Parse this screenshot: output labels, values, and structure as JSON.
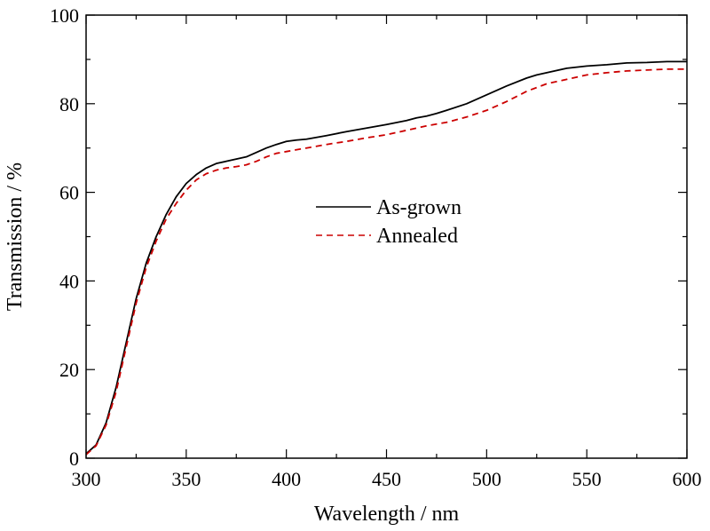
{
  "chart_data": {
    "type": "line",
    "xlabel": "Wavelength / nm",
    "ylabel": "Transmission / %",
    "xlim": [
      300,
      600
    ],
    "ylim": [
      0,
      100
    ],
    "xticks": [
      300,
      350,
      400,
      450,
      500,
      550,
      600
    ],
    "yticks": [
      0,
      20,
      40,
      60,
      80,
      100
    ],
    "grid": false,
    "legend_position": "center",
    "series": [
      {
        "name": "As-grown",
        "color": "#000000",
        "style": "solid",
        "x": [
          300,
          305,
          310,
          315,
          320,
          325,
          330,
          335,
          340,
          345,
          350,
          355,
          360,
          365,
          370,
          375,
          380,
          385,
          390,
          395,
          400,
          405,
          410,
          420,
          430,
          440,
          450,
          460,
          465,
          470,
          475,
          480,
          490,
          500,
          510,
          520,
          525,
          530,
          540,
          550,
          560,
          570,
          580,
          590,
          600
        ],
        "y": [
          1,
          3,
          8,
          16,
          26,
          36,
          44,
          50,
          55,
          59,
          62,
          64,
          65.5,
          66.5,
          67,
          67.5,
          68,
          69,
          70,
          70.8,
          71.5,
          71.8,
          72,
          72.8,
          73.7,
          74.5,
          75.3,
          76.2,
          76.8,
          77.2,
          77.8,
          78.5,
          80,
          82,
          84,
          85.8,
          86.5,
          87,
          88,
          88.5,
          88.8,
          89.2,
          89.3,
          89.5,
          89.5
        ]
      },
      {
        "name": "Annealed",
        "color": "#cc0000",
        "style": "dashed",
        "x": [
          300,
          305,
          310,
          315,
          320,
          325,
          330,
          335,
          340,
          345,
          350,
          355,
          360,
          365,
          370,
          375,
          380,
          385,
          390,
          395,
          400,
          410,
          420,
          430,
          440,
          450,
          460,
          470,
          480,
          490,
          500,
          510,
          520,
          530,
          540,
          550,
          560,
          570,
          580,
          590,
          600
        ],
        "y": [
          0.8,
          2.8,
          7.5,
          15,
          25,
          35,
          43,
          49,
          54,
          57.5,
          60.5,
          62.8,
          64.2,
          65,
          65.5,
          65.8,
          66.2,
          67,
          68,
          68.8,
          69.2,
          70,
          70.8,
          71.5,
          72.3,
          73,
          74,
          75,
          75.8,
          77,
          78.5,
          80.5,
          82.8,
          84.5,
          85.5,
          86.5,
          87,
          87.4,
          87.6,
          87.8,
          87.8
        ]
      }
    ]
  }
}
